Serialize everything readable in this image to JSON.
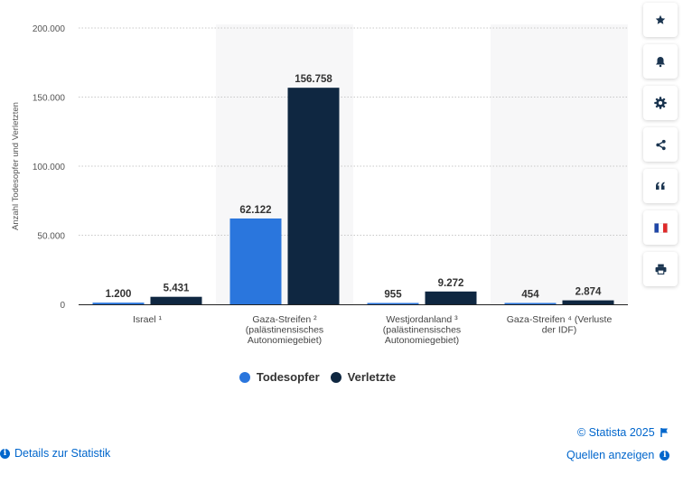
{
  "chart_data": {
    "type": "bar",
    "title": "",
    "ylabel": "Anzahl Todesopfer und Verletzten",
    "xlabel": "",
    "ylim": [
      0,
      200000
    ],
    "yticks": [
      {
        "value": 0,
        "label": "0"
      },
      {
        "value": 50000,
        "label": "50.000"
      },
      {
        "value": 100000,
        "label": "100.000"
      },
      {
        "value": 150000,
        "label": "150.000"
      },
      {
        "value": 200000,
        "label": "200.000"
      }
    ],
    "categories": [
      [
        "Israel ¹"
      ],
      [
        "Gaza-Streifen ²",
        "(palästinensisches",
        "Autonomiegebiet)"
      ],
      [
        "Westjordanland ³",
        "(palästinensisches",
        "Autonomiegebiet)"
      ],
      [
        "Gaza-Streifen ⁴ (Verluste",
        "der IDF)"
      ]
    ],
    "series": [
      {
        "name": "Todesopfer",
        "color": "#2a76dd",
        "values": [
          1200,
          62122,
          955,
          454
        ],
        "labels": [
          "1.200",
          "62.122",
          "955",
          "454"
        ]
      },
      {
        "name": "Verletzte",
        "color": "#0f2741",
        "values": [
          5431,
          156758,
          9272,
          2874
        ],
        "labels": [
          "5.431",
          "156.758",
          "9.272",
          "2.874"
        ]
      }
    ]
  },
  "footer": {
    "copyright": "© Statista 2025",
    "details": "Details zur Statistik",
    "sources": "Quellen anzeigen"
  },
  "sidebar": {
    "icons": [
      "star-icon",
      "bell-icon",
      "gear-icon",
      "share-icon",
      "quote-icon",
      "french-flag-icon",
      "print-icon"
    ]
  }
}
